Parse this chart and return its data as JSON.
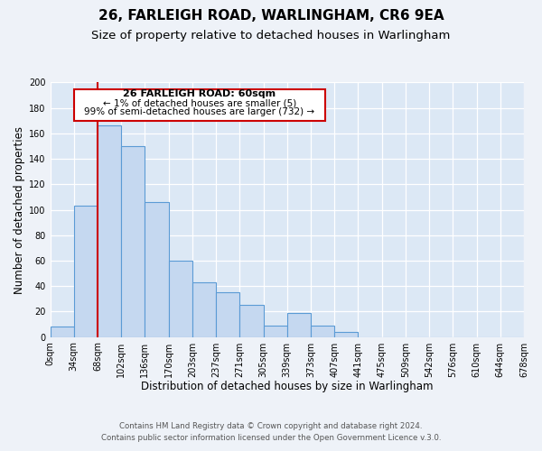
{
  "title": "26, FARLEIGH ROAD, WARLINGHAM, CR6 9EA",
  "subtitle": "Size of property relative to detached houses in Warlingham",
  "xlabel": "Distribution of detached houses by size in Warlingham",
  "ylabel": "Number of detached properties",
  "bin_labels": [
    "0sqm",
    "34sqm",
    "68sqm",
    "102sqm",
    "136sqm",
    "170sqm",
    "203sqm",
    "237sqm",
    "271sqm",
    "305sqm",
    "339sqm",
    "373sqm",
    "407sqm",
    "441sqm",
    "475sqm",
    "509sqm",
    "542sqm",
    "576sqm",
    "610sqm",
    "644sqm",
    "678sqm"
  ],
  "bar_values": [
    8,
    103,
    166,
    150,
    106,
    60,
    43,
    35,
    25,
    9,
    19,
    9,
    4,
    0,
    0,
    0,
    0,
    0,
    0,
    0
  ],
  "bar_color": "#c5d8f0",
  "bar_edge_color": "#5b9bd5",
  "vline_x": 2,
  "vline_color": "#cc0000",
  "ylim": [
    0,
    200
  ],
  "yticks": [
    0,
    20,
    40,
    60,
    80,
    100,
    120,
    140,
    160,
    180,
    200
  ],
  "annotation_title": "26 FARLEIGH ROAD: 60sqm",
  "annotation_line1": "← 1% of detached houses are smaller (5)",
  "annotation_line2": "99% of semi-detached houses are larger (732) →",
  "annotation_box_color": "#ffffff",
  "annotation_box_edge": "#cc0000",
  "footer1": "Contains HM Land Registry data © Crown copyright and database right 2024.",
  "footer2": "Contains public sector information licensed under the Open Government Licence v.3.0.",
  "fig_bg_color": "#eef2f8",
  "plot_bg_color": "#dce8f5",
  "title_fontsize": 11,
  "subtitle_fontsize": 9.5,
  "axis_label_fontsize": 8.5,
  "tick_fontsize": 7
}
